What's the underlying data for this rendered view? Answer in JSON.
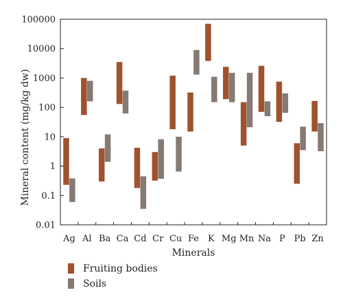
{
  "chart_data": {
    "type": "bar",
    "subtype": "floating-range",
    "xlabel": "Minerals",
    "ylabel": "Mineral content (mg/kg dw)",
    "yscale": "log",
    "ylim": [
      0.01,
      100000
    ],
    "yticks": [
      "0.01",
      "0.1",
      "1",
      "10",
      "100",
      "1000",
      "10000",
      "100000"
    ],
    "grid": false,
    "legend_position": "bottom-left",
    "categories": [
      "Ag",
      "Al",
      "Ba",
      "Ca",
      "Cd",
      "Cr",
      "Cu",
      "Fe",
      "K",
      "Mg",
      "Mn",
      "Na",
      "P",
      "Pb",
      "Zn"
    ],
    "series": [
      {
        "name": "Fruiting bodies",
        "color": "#a0522d",
        "ranges": [
          [
            0.23,
            9
          ],
          [
            55,
            1000
          ],
          [
            0.3,
            4
          ],
          [
            130,
            3500
          ],
          [
            0.18,
            4.2
          ],
          [
            0.32,
            3
          ],
          [
            18,
            1200
          ],
          [
            15,
            320
          ],
          [
            3800,
            70000
          ],
          [
            190,
            2400
          ],
          [
            5,
            150
          ],
          [
            70,
            2600
          ],
          [
            32,
            750
          ],
          [
            0.25,
            6
          ],
          [
            15,
            165
          ]
        ]
      },
      {
        "name": "Soils",
        "color": "#857a74",
        "ranges": [
          [
            0.06,
            0.38
          ],
          [
            160,
            800
          ],
          [
            1.4,
            12
          ],
          [
            62,
            370
          ],
          [
            0.035,
            0.45
          ],
          [
            0.37,
            8.2
          ],
          [
            0.65,
            10
          ],
          [
            1300,
            9000
          ],
          [
            150,
            1100
          ],
          [
            150,
            1500
          ],
          [
            21,
            1500
          ],
          [
            50,
            160
          ],
          [
            65,
            300
          ],
          [
            3.5,
            22
          ],
          [
            3.2,
            29
          ]
        ]
      }
    ]
  }
}
